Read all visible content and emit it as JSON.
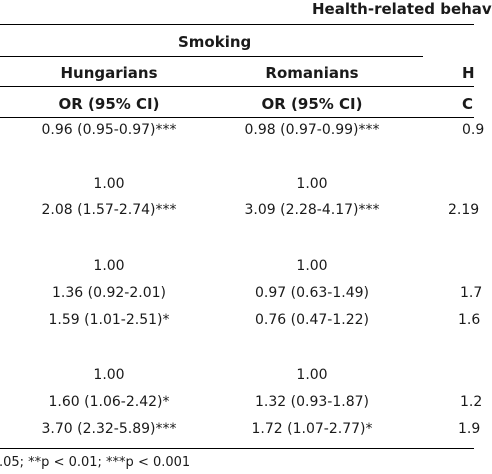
{
  "header": {
    "top_title": "Health-related behav",
    "group_title": "Smoking",
    "columns": [
      {
        "name": "Hungarians",
        "stat": "OR (95% CI)"
      },
      {
        "name": "Romanians",
        "stat": "OR (95% CI)"
      },
      {
        "name": "H",
        "stat": "C"
      }
    ]
  },
  "rows": [
    {
      "hu": "0.96 (0.95-0.97)***",
      "ro": "0.98 (0.97-0.99)***",
      "h3": "0.9"
    },
    {
      "hu": "1.00",
      "ro": "1.00",
      "h3": ""
    },
    {
      "hu": "2.08 (1.57-2.74)***",
      "ro": "3.09 (2.28-4.17)***",
      "h3": "2.19"
    },
    {
      "hu": "1.00",
      "ro": "1.00",
      "h3": ""
    },
    {
      "hu": "1.36 (0.92-2.01)",
      "ro": "0.97 (0.63-1.49)",
      "h3": "1.7"
    },
    {
      "hu": "1.59 (1.01-2.51)*",
      "ro": "0.76 (0.47-1.22)",
      "h3": "1.6"
    },
    {
      "hu": "1.00",
      "ro": "1.00",
      "h3": ""
    },
    {
      "hu": "1.60 (1.06-2.42)*",
      "ro": "1.32 (0.93-1.87)",
      "h3": "1.2"
    },
    {
      "hu": "3.70 (2.32-5.89)***",
      "ro": "1.72 (1.07-2.77)*",
      "h3": "1.9"
    }
  ],
  "footnote": ".05; **p < 0.01; ***p < 0.001"
}
